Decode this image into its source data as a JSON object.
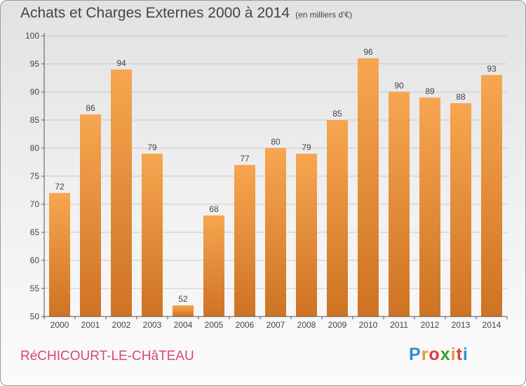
{
  "title": "Achats et Charges Externes 2000 à 2014",
  "unit": "(en milliers d'€)",
  "commune": "RéCHICOURT-LE-CHâTEAU",
  "brand": {
    "letters": [
      "P",
      "r",
      "o",
      "x",
      "i",
      "t",
      "i"
    ],
    "colors": [
      "#2f8fd1",
      "#e89a2c",
      "#e03c3c",
      "#3f9a3a",
      "#e89a2c",
      "#e03c3c",
      "#2f8fd1"
    ]
  },
  "colors": {
    "bar_light": "#f7a650",
    "bar_dark": "#ce7323",
    "grid": "#c8c8c8",
    "axis": "#555555",
    "text": "#444444"
  },
  "chart_data": {
    "type": "bar",
    "categories": [
      "2000",
      "2001",
      "2002",
      "2003",
      "2004",
      "2005",
      "2006",
      "2007",
      "2008",
      "2009",
      "2010",
      "2011",
      "2012",
      "2013",
      "2014"
    ],
    "values": [
      72,
      86,
      94,
      79,
      52,
      68,
      77,
      80,
      79,
      85,
      96,
      90,
      89,
      88,
      93
    ],
    "ylim": [
      50,
      100
    ],
    "yticks": [
      50,
      55,
      60,
      65,
      70,
      75,
      80,
      85,
      90,
      95,
      100
    ],
    "grid": true,
    "xlabel": "",
    "ylabel": ""
  }
}
